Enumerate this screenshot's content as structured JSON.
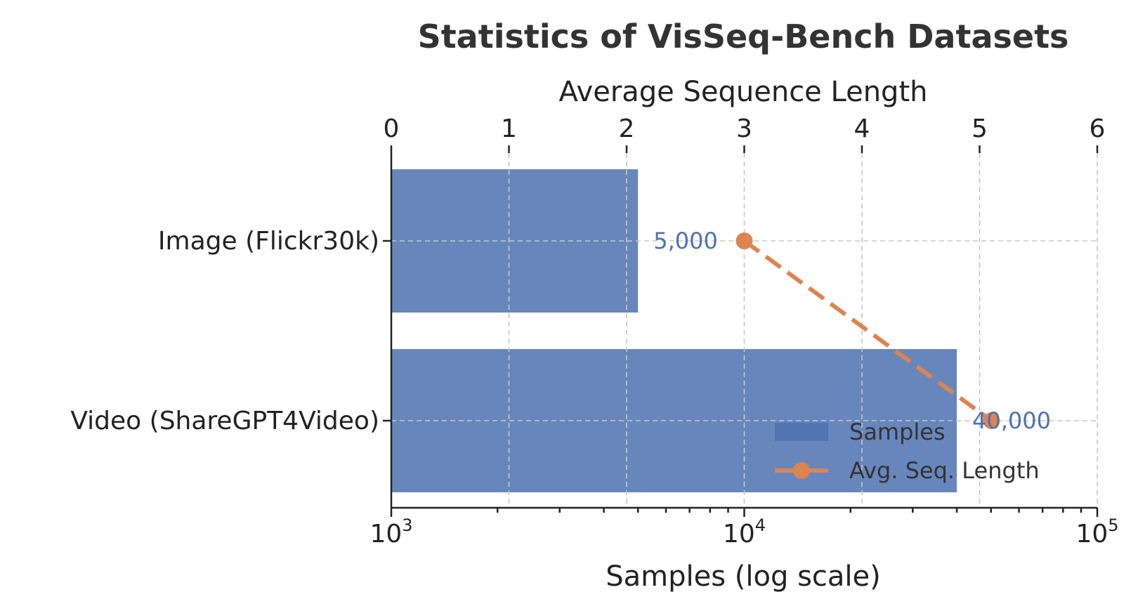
{
  "chart_data": {
    "type": "bar",
    "title": "Statistics of VisSeq-Bench Datasets",
    "orientation": "horizontal",
    "categories": [
      "Image (Flickr30k)",
      "Video (ShareGPT4Video)"
    ],
    "series": [
      {
        "name": "Samples",
        "axis": "bottom",
        "values": [
          5000,
          40000
        ],
        "data_labels": [
          "5,000",
          "40,000"
        ],
        "color": "#4c72b0"
      },
      {
        "name": "Avg. Seq. Length",
        "axis": "top",
        "type": "line",
        "values": [
          3.0,
          5.1
        ],
        "color": "#dd8452",
        "linestyle": "dashed",
        "marker": "circle"
      }
    ],
    "bottom_axis": {
      "label": "Samples (log scale)",
      "scale": "log",
      "range": [
        1000,
        100000
      ],
      "ticks": [
        {
          "value": 1000,
          "base": "10",
          "exp": "3"
        },
        {
          "value": 10000,
          "base": "10",
          "exp": "4"
        },
        {
          "value": 100000,
          "base": "10",
          "exp": "5"
        }
      ]
    },
    "top_axis": {
      "label": "Average Sequence Length",
      "scale": "linear",
      "range": [
        0,
        6
      ],
      "ticks": [
        "0",
        "1",
        "2",
        "3",
        "4",
        "5",
        "6"
      ]
    },
    "legend": {
      "placement": "lower-right",
      "entries": [
        "Samples",
        "Avg. Seq. Length"
      ]
    },
    "grid": true
  }
}
